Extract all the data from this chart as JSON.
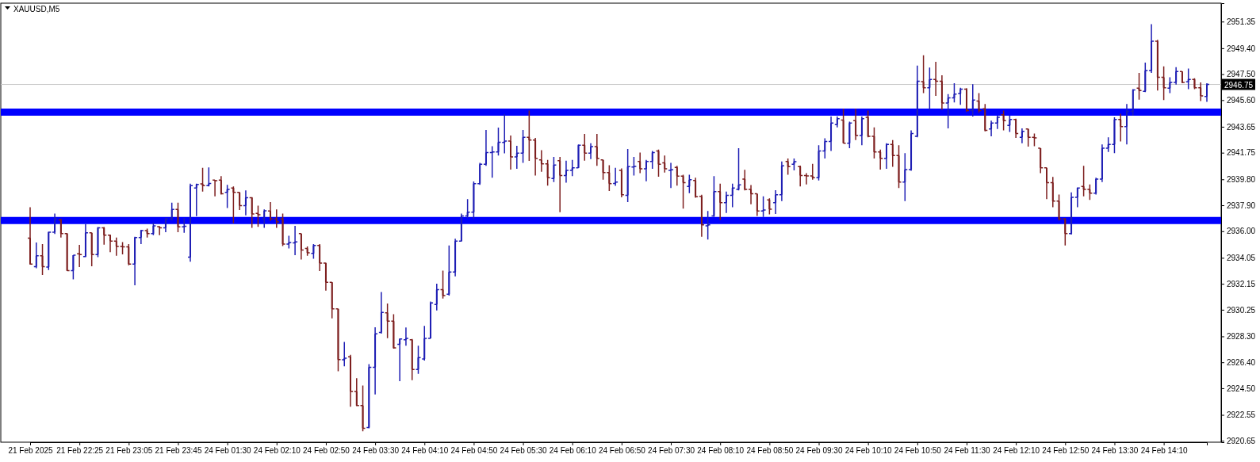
{
  "chart_data": {
    "type": "candlestick",
    "title": "XAUUSD,M5",
    "categories": [
      "21 Feb 2025",
      null,
      null,
      null,
      null,
      null,
      null,
      null,
      "21 Feb 22:25",
      null,
      null,
      null,
      null,
      null,
      null,
      null,
      "21 Feb 23:05",
      null,
      null,
      null,
      null,
      null,
      null,
      null,
      "21 Feb 23:45",
      null,
      null,
      null,
      null,
      null,
      null,
      null,
      "24 Feb 01:30",
      null,
      null,
      null,
      null,
      null,
      null,
      null,
      "24 Feb 02:10",
      null,
      null,
      null,
      null,
      null,
      null,
      null,
      "24 Feb 02:50",
      null,
      null,
      null,
      null,
      null,
      null,
      null,
      "24 Feb 03:30",
      null,
      null,
      null,
      null,
      null,
      null,
      null,
      "24 Feb 04:10",
      null,
      null,
      null,
      null,
      null,
      null,
      null,
      "24 Feb 04:50",
      null,
      null,
      null,
      null,
      null,
      null,
      null,
      "24 Feb 05:30",
      null,
      null,
      null,
      null,
      null,
      null,
      null,
      "24 Feb 06:10",
      null,
      null,
      null,
      null,
      null,
      null,
      null,
      "24 Feb 06:50",
      null,
      null,
      null,
      null,
      null,
      null,
      null,
      "24 Feb 07:30",
      null,
      null,
      null,
      null,
      null,
      null,
      null,
      "24 Feb 08:10",
      null,
      null,
      null,
      null,
      null,
      null,
      null,
      "24 Feb 08:50",
      null,
      null,
      null,
      null,
      null,
      null,
      null,
      "24 Feb 09:30",
      null,
      null,
      null,
      null,
      null,
      null,
      null,
      "24 Feb 10:10",
      null,
      null,
      null,
      null,
      null,
      null,
      null,
      "24 Feb 10:50",
      null,
      null,
      null,
      null,
      null,
      null,
      null,
      "24 Feb 11:30",
      null,
      null,
      null,
      null,
      null,
      null,
      null,
      "24 Feb 12:10",
      null,
      null,
      null,
      null,
      null,
      null,
      null,
      "24 Feb 12:50",
      null,
      null,
      null,
      null,
      null,
      null,
      null,
      "24 Feb 13:30",
      null,
      null,
      null,
      null,
      null,
      null,
      null,
      "24 Feb 14:10",
      null,
      null,
      null,
      null,
      null,
      null,
      null
    ],
    "ohlc": [
      [
        2935.5,
        2937.76,
        2933.55,
        2933.6
      ],
      [
        2933.4,
        2935.17,
        2933.29,
        2934.2
      ],
      [
        2934.2,
        2935.06,
        2932.8,
        2933.4
      ],
      [
        2933.38,
        2935.97,
        2933.16,
        2935.93
      ],
      [
        2935.93,
        2937.29,
        2935.8,
        2936.9
      ],
      [
        2936.83,
        2936.9,
        2935.54,
        2935.82
      ],
      [
        2935.82,
        2935.86,
        2933.08,
        2933.12
      ],
      [
        2933.12,
        2934.24,
        2932.47,
        2934.24
      ],
      [
        2934.35,
        2935.0,
        2933.38,
        2934.29
      ],
      [
        2934.14,
        2936.53,
        2934.1,
        2935.88
      ],
      [
        2935.88,
        2935.88,
        2933.44,
        2934.29
      ],
      [
        2934.29,
        2936.3,
        2934.1,
        2936.25
      ],
      [
        2936.25,
        2936.3,
        2935.02,
        2935.71
      ],
      [
        2935.71,
        2935.75,
        2934.46,
        2935.28
      ],
      [
        2935.28,
        2935.54,
        2934.2,
        2934.89
      ],
      [
        2934.89,
        2935.2,
        2934.3,
        2934.85
      ],
      [
        2934.85,
        2935.06,
        2933.5,
        2933.6
      ],
      [
        2933.6,
        2935.6,
        2932.04,
        2935.54
      ],
      [
        2935.54,
        2936.1,
        2935.06,
        2936.04
      ],
      [
        2936.04,
        2936.19,
        2935.54,
        2935.82
      ],
      [
        2935.82,
        2936.62,
        2935.71,
        2936.4
      ],
      [
        2936.34,
        2936.36,
        2935.71,
        2936.25
      ],
      [
        2936.25,
        2936.96,
        2935.93,
        2936.9
      ],
      [
        2936.9,
        2938.09,
        2936.79,
        2937.59
      ],
      [
        2937.59,
        2938.09,
        2935.93,
        2936.32
      ],
      [
        2936.32,
        2936.96,
        2935.88,
        2936.36
      ],
      [
        2934.1,
        2939.49,
        2933.77,
        2939.34
      ],
      [
        2939.17,
        2939.49,
        2937.11,
        2939.43
      ],
      [
        2939.47,
        2940.64,
        2938.9,
        2939.34
      ],
      [
        2939.34,
        2940.68,
        2939.28,
        2939.5
      ],
      [
        2939.75,
        2939.75,
        2938.56,
        2939.7
      ],
      [
        2939.75,
        2940.03,
        2938.69,
        2938.74
      ],
      [
        2938.84,
        2939.39,
        2937.7,
        2939.06
      ],
      [
        2939.17,
        2939.28,
        2936.58,
        2938.84
      ],
      [
        2938.84,
        2938.84,
        2937.55,
        2937.87
      ],
      [
        2937.87,
        2938.99,
        2937.16,
        2938.46
      ],
      [
        2938.46,
        2938.5,
        2936.25,
        2937.27
      ],
      [
        2937.3,
        2937.87,
        2936.32,
        2937.2
      ],
      [
        2936.9,
        2937.59,
        2936.25,
        2937.5
      ],
      [
        2937.48,
        2938.13,
        2936.75,
        2936.9
      ],
      [
        2936.9,
        2937.59,
        2936.25,
        2936.68
      ],
      [
        2936.9,
        2937.29,
        2934.91,
        2935.06
      ],
      [
        2935.06,
        2935.67,
        2934.74,
        2935.17
      ],
      [
        2935.15,
        2936.4,
        2934.24,
        2935.22
      ],
      [
        2935.82,
        2935.82,
        2933.92,
        2934.63
      ],
      [
        2934.74,
        2934.89,
        2934.2,
        2934.42
      ],
      [
        2934.37,
        2935.06,
        2933.98,
        2934.96
      ],
      [
        2934.96,
        2935.06,
        2933.08,
        2933.66
      ],
      [
        2933.66,
        2933.7,
        2931.65,
        2932.26
      ],
      [
        2932.26,
        2932.26,
        2929.62,
        2930.31
      ],
      [
        2930.31,
        2930.31,
        2925.74,
        2926.6
      ],
      [
        2926.58,
        2927.89,
        2926.1,
        2926.7
      ],
      [
        2926.81,
        2926.95,
        2923.15,
        2924.27
      ],
      [
        2924.27,
        2925.24,
        2923.19,
        2923.23
      ],
      [
        2923.23,
        2924.7,
        2921.35,
        2921.57
      ],
      [
        2921.63,
        2926.27,
        2921.57,
        2926.04
      ],
      [
        2926.04,
        2928.97,
        2924.05,
        2928.48
      ],
      [
        2928.59,
        2931.54,
        2928.5,
        2930.05
      ],
      [
        2930.03,
        2930.7,
        2928.16,
        2929.41
      ],
      [
        2929.41,
        2929.92,
        2927.4,
        2927.46
      ],
      [
        2927.72,
        2928.15,
        2925.02,
        2928.11
      ],
      [
        2928.05,
        2928.95,
        2927.61,
        2928.15
      ],
      [
        2928.05,
        2928.11,
        2925.09,
        2925.88
      ],
      [
        2925.88,
        2927.61,
        2925.56,
        2926.75
      ],
      [
        2926.64,
        2929.06,
        2926.53,
        2928.15
      ],
      [
        2928.15,
        2930.85,
        2928.15,
        2930.75
      ],
      [
        2930.64,
        2932.15,
        2930.2,
        2931.72
      ],
      [
        2931.72,
        2933.12,
        2931.07,
        2931.28
      ],
      [
        2931.39,
        2934.96,
        2931.28,
        2933.01
      ],
      [
        2933.01,
        2935.45,
        2932.69,
        2935.28
      ],
      [
        2935.28,
        2937.29,
        2935.24,
        2937.12
      ],
      [
        2937.12,
        2938.35,
        2936.96,
        2937.4
      ],
      [
        2937.4,
        2939.64,
        2936.9,
        2939.49
      ],
      [
        2939.49,
        2941.0,
        2939.4,
        2940.9
      ],
      [
        2940.9,
        2943.42,
        2940.79,
        2941.76
      ],
      [
        2941.76,
        2942.23,
        2939.92,
        2941.8
      ],
      [
        2941.8,
        2943.59,
        2941.54,
        2942.51
      ],
      [
        2942.5,
        2944.57,
        2941.71,
        2942.6
      ],
      [
        2942.6,
        2943.01,
        2940.51,
        2941.44
      ],
      [
        2941.44,
        2942.26,
        2940.57,
        2941.72
      ],
      [
        2941.72,
        2943.42,
        2941.0,
        2942.88
      ],
      [
        2942.88,
        2944.83,
        2941.15,
        2942.67
      ],
      [
        2942.67,
        2942.84,
        2940.08,
        2941.33
      ],
      [
        2941.22,
        2941.93,
        2940.36,
        2940.94
      ],
      [
        2940.94,
        2941.22,
        2939.34,
        2939.92
      ],
      [
        2939.86,
        2941.44,
        2939.6,
        2940.85
      ],
      [
        2941.16,
        2941.44,
        2937.4,
        2940.08
      ],
      [
        2940.08,
        2941.16,
        2939.56,
        2940.46
      ],
      [
        2940.46,
        2941.22,
        2940.03,
        2940.64
      ],
      [
        2940.64,
        2942.36,
        2940.64,
        2942.3
      ],
      [
        2942.3,
        2943.12,
        2941.16,
        2941.72
      ],
      [
        2941.72,
        2942.45,
        2941.28,
        2942.19
      ],
      [
        2942.19,
        2943.12,
        2940.79,
        2941.33
      ],
      [
        2941.22,
        2941.22,
        2939.77,
        2940.29
      ],
      [
        2940.29,
        2940.83,
        2938.95,
        2939.49
      ],
      [
        2939.5,
        2940.64,
        2939.32,
        2939.6
      ],
      [
        2940.46,
        2940.6,
        2938.48,
        2938.67
      ],
      [
        2938.63,
        2942.02,
        2938.13,
        2940.73
      ],
      [
        2940.7,
        2941.44,
        2940.08,
        2940.75
      ],
      [
        2941.11,
        2941.76,
        2940.25,
        2940.57
      ],
      [
        2940.57,
        2941.22,
        2939.66,
        2941.11
      ],
      [
        2941.11,
        2941.87,
        2940.57,
        2941.76
      ],
      [
        2941.87,
        2941.98,
        2939.99,
        2940.9
      ],
      [
        2941.0,
        2941.54,
        2940.29,
        2940.57
      ],
      [
        2940.46,
        2941.0,
        2939.17,
        2940.5
      ],
      [
        2940.68,
        2940.79,
        2939.34,
        2940.03
      ],
      [
        2940.03,
        2940.14,
        2937.66,
        2939.56
      ],
      [
        2939.28,
        2940.14,
        2938.78,
        2939.77
      ],
      [
        2939.71,
        2939.92,
        2938.45,
        2938.52
      ],
      [
        2938.56,
        2938.67,
        2935.6,
        2936.47
      ],
      [
        2936.4,
        2937.48,
        2935.39,
        2936.47
      ],
      [
        2937.12,
        2940.03,
        2937.05,
        2938.91
      ],
      [
        2938.91,
        2939.49,
        2936.83,
        2938.09
      ],
      [
        2938.09,
        2938.91,
        2937.33,
        2938.63
      ],
      [
        2938.63,
        2939.49,
        2937.76,
        2939.17
      ],
      [
        2939.06,
        2942.08,
        2938.99,
        2939.4
      ],
      [
        2939.82,
        2940.5,
        2938.99,
        2939.06
      ],
      [
        2939.06,
        2939.38,
        2937.98,
        2938.74
      ],
      [
        2938.74,
        2938.74,
        2937.12,
        2937.48
      ],
      [
        2937.48,
        2938.56,
        2937.05,
        2937.55
      ],
      [
        2938.3,
        2938.41,
        2937.23,
        2937.61
      ],
      [
        2938.09,
        2939.0,
        2937.27,
        2938.67
      ],
      [
        2938.67,
        2941.11,
        2938.2,
        2940.79
      ],
      [
        2941.11,
        2941.33,
        2940.14,
        2940.73
      ],
      [
        2940.9,
        2941.33,
        2940.46,
        2941.1
      ],
      [
        2940.73,
        2940.8,
        2939.28,
        2940.08
      ],
      [
        2940.08,
        2940.25,
        2939.43,
        2940.05
      ],
      [
        2940.05,
        2940.94,
        2939.77,
        2939.92
      ],
      [
        2939.92,
        2942.3,
        2939.71,
        2941.87
      ],
      [
        2941.87,
        2942.8,
        2941.33,
        2942.58
      ],
      [
        2942.58,
        2944.4,
        2941.87,
        2943.92
      ],
      [
        2943.81,
        2944.4,
        2943.6,
        2944.24
      ],
      [
        2944.14,
        2944.96,
        2942.45,
        2942.45
      ],
      [
        2942.45,
        2944.03,
        2942.08,
        2943.92
      ],
      [
        2944.09,
        2944.96,
        2942.67,
        2943.01
      ],
      [
        2943.01,
        2944.4,
        2942.3,
        2944.24
      ],
      [
        2944.35,
        2944.83,
        2942.88,
        2942.95
      ],
      [
        2942.95,
        2943.6,
        2941.33,
        2941.8
      ],
      [
        2941.8,
        2941.98,
        2940.51,
        2941.33
      ],
      [
        2941.33,
        2942.45,
        2940.57,
        2942.36
      ],
      [
        2942.36,
        2942.67,
        2940.72,
        2941.54
      ],
      [
        2941.54,
        2942.3,
        2939.17,
        2939.6
      ],
      [
        2939.6,
        2941.72,
        2938.2,
        2940.51
      ],
      [
        2940.51,
        2943.38,
        2940.42,
        2943.16
      ],
      [
        2942.95,
        2948.13,
        2942.88,
        2946.99
      ],
      [
        2946.95,
        2948.89,
        2946.12,
        2946.5
      ],
      [
        2946.51,
        2947.98,
        2944.89,
        2947.12
      ],
      [
        2947.12,
        2948.41,
        2945.91,
        2946.99
      ],
      [
        2946.99,
        2947.42,
        2944.89,
        2945.39
      ],
      [
        2945.39,
        2946.04,
        2943.53,
        2945.76
      ],
      [
        2945.76,
        2946.84,
        2945.43,
        2946.04
      ],
      [
        2946.08,
        2946.51,
        2945.26,
        2946.4
      ],
      [
        2946.4,
        2946.47,
        2944.74,
        2944.83
      ],
      [
        2944.83,
        2946.77,
        2944.4,
        2945.6
      ],
      [
        2945.54,
        2946.12,
        2944.68,
        2944.83
      ],
      [
        2944.96,
        2945.32,
        2943.31,
        2943.38
      ],
      [
        2943.49,
        2944.09,
        2942.95,
        2943.92
      ],
      [
        2943.92,
        2944.46,
        2943.49,
        2944.35
      ],
      [
        2944.53,
        2944.83,
        2943.38,
        2944.09
      ],
      [
        2943.75,
        2944.46,
        2943.27,
        2944.18
      ],
      [
        2944.18,
        2944.24,
        2942.84,
        2943.16
      ],
      [
        2942.88,
        2943.53,
        2942.45,
        2943.31
      ],
      [
        2943.49,
        2943.49,
        2942.19,
        2942.88
      ],
      [
        2942.88,
        2943.16,
        2942.23,
        2942.84
      ],
      [
        2942.08,
        2942.08,
        2940.25,
        2940.64
      ],
      [
        2940.64,
        2940.64,
        2938.35,
        2939.56
      ],
      [
        2939.56,
        2939.97,
        2937.76,
        2938.2
      ],
      [
        2938.2,
        2938.69,
        2936.79,
        2936.9
      ],
      [
        2936.9,
        2936.96,
        2934.96,
        2935.82
      ],
      [
        2935.82,
        2938.84,
        2935.75,
        2938.48
      ],
      [
        2938.48,
        2939.21,
        2937.76,
        2939.17
      ],
      [
        2939.28,
        2940.79,
        2938.56,
        2939.06
      ],
      [
        2939.06,
        2939.43,
        2938.3,
        2938.78
      ],
      [
        2938.78,
        2939.92,
        2938.69,
        2939.82
      ],
      [
        2939.82,
        2942.36,
        2939.6,
        2942.08
      ],
      [
        2942.08,
        2942.88,
        2941.8,
        2942.36
      ],
      [
        2942.36,
        2944.35,
        2941.72,
        2944.18
      ],
      [
        2944.18,
        2944.61,
        2942.58,
        2943.66
      ],
      [
        2943.66,
        2945.32,
        2942.36,
        2944.78
      ],
      [
        2944.78,
        2946.4,
        2944.46,
        2946.34
      ],
      [
        2946.47,
        2947.59,
        2945.64,
        2946.3
      ],
      [
        2946.25,
        2948.35,
        2946.19,
        2947.76
      ],
      [
        2947.76,
        2951.16,
        2947.59,
        2949.92
      ],
      [
        2949.92,
        2950.01,
        2946.3,
        2947.27
      ],
      [
        2947.27,
        2948.07,
        2945.6,
        2946.51
      ],
      [
        2946.47,
        2947.27,
        2946.12,
        2946.9
      ],
      [
        2946.9,
        2948.02,
        2946.73,
        2947.7
      ],
      [
        2947.7,
        2947.7,
        2946.84,
        2946.9
      ],
      [
        2946.94,
        2947.91,
        2946.4,
        2947.12
      ],
      [
        2947.12,
        2947.2,
        2946.4,
        2946.51
      ],
      [
        2946.51,
        2946.9,
        2945.54,
        2945.91
      ],
      [
        2945.86,
        2946.84,
        2945.48,
        2946.75
      ]
    ],
    "colors": [
      "#7d1e1e",
      "#1e1eb4",
      "#7d1e1e",
      "#1e1eb4",
      "#1e1eb4",
      "#7d1e1e",
      "#7d1e1e",
      "#1e1eb4",
      "#7d1e1e",
      "#1e1eb4",
      "#7d1e1e",
      "#1e1eb4",
      "#7d1e1e",
      "#7d1e1e",
      "#7d1e1e",
      "#7d1e1e",
      "#7d1e1e",
      "#1e1eb4",
      "#1e1eb4",
      "#7d1e1e",
      "#1e1eb4",
      "#7d1e1e",
      "#1e1eb4",
      "#1e1eb4",
      "#7d1e1e",
      "#1e1eb4",
      "#1e1eb4",
      "#1e1eb4",
      "#7d1e1e",
      "#1e1eb4",
      "#7d1e1e",
      "#7d1e1e",
      "#1e1eb4",
      "#7d1e1e",
      "#7d1e1e",
      "#1e1eb4",
      "#7d1e1e",
      "#7d1e1e",
      "#1e1eb4",
      "#7d1e1e",
      "#7d1e1e",
      "#7d1e1e",
      "#1e1eb4",
      "#1e1eb4",
      "#7d1e1e",
      "#7d1e1e",
      "#1e1eb4",
      "#7d1e1e",
      "#7d1e1e",
      "#7d1e1e",
      "#7d1e1e",
      "#1e1eb4",
      "#7d1e1e",
      "#7d1e1e",
      "#7d1e1e",
      "#1e1eb4",
      "#1e1eb4",
      "#1e1eb4",
      "#7d1e1e",
      "#7d1e1e",
      "#1e1eb4",
      "#1e1eb4",
      "#7d1e1e",
      "#1e1eb4",
      "#1e1eb4",
      "#1e1eb4",
      "#1e1eb4",
      "#7d1e1e",
      "#1e1eb4",
      "#1e1eb4",
      "#1e1eb4",
      "#1e1eb4",
      "#1e1eb4",
      "#1e1eb4",
      "#1e1eb4",
      "#1e1eb4",
      "#1e1eb4",
      "#1e1eb4",
      "#7d1e1e",
      "#1e1eb4",
      "#1e1eb4",
      "#7d1e1e",
      "#7d1e1e",
      "#7d1e1e",
      "#7d1e1e",
      "#1e1eb4",
      "#7d1e1e",
      "#1e1eb4",
      "#1e1eb4",
      "#1e1eb4",
      "#7d1e1e",
      "#1e1eb4",
      "#7d1e1e",
      "#7d1e1e",
      "#7d1e1e",
      "#1e1eb4",
      "#7d1e1e",
      "#1e1eb4",
      "#1e1eb4",
      "#7d1e1e",
      "#1e1eb4",
      "#1e1eb4",
      "#7d1e1e",
      "#7d1e1e",
      "#1e1eb4",
      "#7d1e1e",
      "#7d1e1e",
      "#1e1eb4",
      "#7d1e1e",
      "#7d1e1e",
      "#1e1eb4",
      "#1e1eb4",
      "#7d1e1e",
      "#1e1eb4",
      "#1e1eb4",
      "#1e1eb4",
      "#7d1e1e",
      "#7d1e1e",
      "#7d1e1e",
      "#1e1eb4",
      "#7d1e1e",
      "#1e1eb4",
      "#1e1eb4",
      "#7d1e1e",
      "#1e1eb4",
      "#7d1e1e",
      "#7d1e1e",
      "#7d1e1e",
      "#1e1eb4",
      "#1e1eb4",
      "#1e1eb4",
      "#1e1eb4",
      "#7d1e1e",
      "#1e1eb4",
      "#7d1e1e",
      "#1e1eb4",
      "#7d1e1e",
      "#7d1e1e",
      "#7d1e1e",
      "#1e1eb4",
      "#7d1e1e",
      "#7d1e1e",
      "#1e1eb4",
      "#1e1eb4",
      "#1e1eb4",
      "#7d1e1e",
      "#1e1eb4",
      "#7d1e1e",
      "#7d1e1e",
      "#1e1eb4",
      "#1e1eb4",
      "#1e1eb4",
      "#7d1e1e",
      "#1e1eb4",
      "#7d1e1e",
      "#7d1e1e",
      "#1e1eb4",
      "#1e1eb4",
      "#7d1e1e",
      "#1e1eb4",
      "#7d1e1e",
      "#1e1eb4",
      "#7d1e1e",
      "#7d1e1e",
      "#7d1e1e",
      "#7d1e1e",
      "#7d1e1e",
      "#7d1e1e",
      "#7d1e1e",
      "#1e1eb4",
      "#1e1eb4",
      "#7d1e1e",
      "#7d1e1e",
      "#1e1eb4",
      "#1e1eb4",
      "#1e1eb4",
      "#1e1eb4",
      "#7d1e1e",
      "#1e1eb4",
      "#1e1eb4",
      "#7d1e1e",
      "#1e1eb4",
      "#1e1eb4",
      "#7d1e1e",
      "#7d1e1e",
      "#1e1eb4",
      "#1e1eb4",
      "#7d1e1e",
      "#1e1eb4",
      "#7d1e1e",
      "#7d1e1e",
      "#1e1eb4"
    ],
    "ylim": [
      2920.55,
      2952.7
    ],
    "yticks": [
      2951.35,
      {
        "value": 2949.4,
        "label": "2949.40"
      },
      {
        "value": 2947.5,
        "label": "2947.50"
      },
      {
        "value": 2945.6,
        "label": "2945.60"
      },
      2943.65,
      2941.75,
      {
        "value": 2939.8,
        "label": "2939.80"
      },
      {
        "value": 2937.9,
        "label": "2937.90"
      },
      {
        "value": 2936,
        "label": "2936.00"
      },
      2934.05,
      2932.15,
      2930.25,
      {
        "value": 2928.3,
        "label": "2928.30"
      },
      {
        "value": 2926.4,
        "label": "2926.40"
      },
      {
        "value": 2924.5,
        "label": "2924.50"
      },
      2922.55,
      2920.65
    ],
    "ref_lines": [
      {
        "axis": "y",
        "value": 2944.72,
        "color": "#0000ff"
      },
      {
        "axis": "y",
        "value": 2936.79,
        "color": "#0000ff"
      },
      {
        "axis": "y",
        "value": 2946.75,
        "label": "2946.75",
        "color": "#c8c8c8"
      }
    ]
  }
}
